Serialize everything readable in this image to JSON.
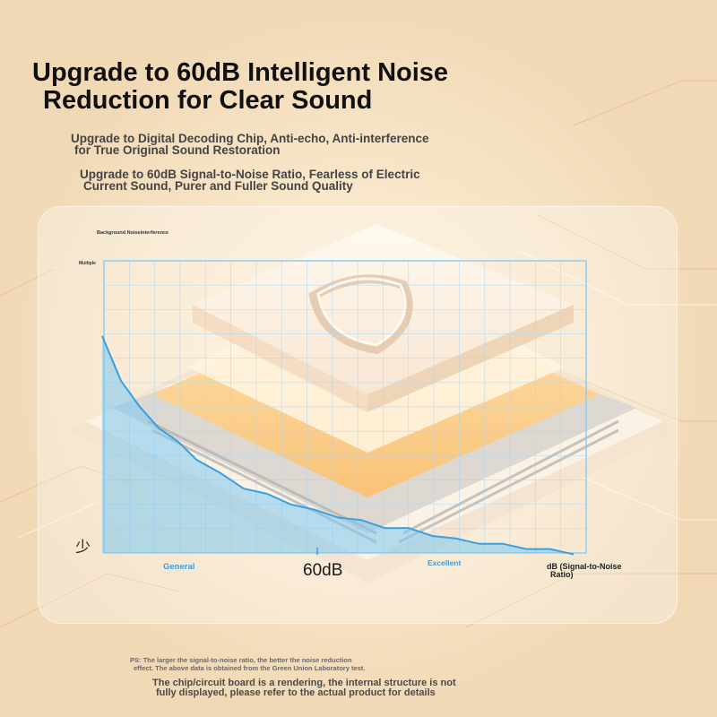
{
  "headline": {
    "line1": "Upgrade to 60dB Intelligent Noise",
    "line2": "Reduction for Clear Sound"
  },
  "features": [
    {
      "line1": "Upgrade to Digital Decoding Chip, Anti-echo, Anti-interference",
      "line2": "for True Original Sound Restoration"
    },
    {
      "line1": "Upgrade to 60dB Signal-to-Noise Ratio, Fearless of Electric",
      "line2": "Current Sound, Purer and Fuller Sound Quality"
    }
  ],
  "chart": {
    "y_title": "Background Noiseinterference",
    "y_top_label": "Multiple",
    "y_bottom_label": "少",
    "x_left_label": "General",
    "x_mid_label": "60dB",
    "x_right_label": "Excellent",
    "x_unit_line1": "dB (Signal-to-Noise",
    "x_unit_line2": "Ratio)"
  },
  "chart_data": {
    "type": "area",
    "title": "",
    "ylabel": "Background Noiseinterference",
    "xlabel": "dB (Signal-to-Noise Ratio)",
    "x_ticks": [
      "General",
      "60dB",
      "Excellent"
    ],
    "y_ticks": [
      "Multiple",
      "少"
    ],
    "x": [
      0,
      0.04,
      0.08,
      0.12,
      0.16,
      0.2,
      0.25,
      0.3,
      0.35,
      0.4,
      0.45,
      0.5,
      0.55,
      0.6,
      0.65,
      0.7,
      0.75,
      0.8,
      0.85,
      0.9,
      0.95,
      1.0
    ],
    "values": [
      0.82,
      0.66,
      0.55,
      0.48,
      0.42,
      0.36,
      0.3,
      0.25,
      0.22,
      0.19,
      0.16,
      0.14,
      0.12,
      0.1,
      0.09,
      0.07,
      0.05,
      0.04,
      0.03,
      0.02,
      0.01,
      0.0
    ],
    "grid": true,
    "color": "#5cb8ef"
  },
  "colors": {
    "accent": "#3a9fe0",
    "fill": "#7cc8f2",
    "grid": "#a9d7f3",
    "chip_glow": "#ffb648"
  },
  "footnotes": {
    "ps_line1": "PS: The larger the signal-to-noise ratio, the better the noise reduction",
    "ps_line2": "effect. The above data is obtained from the Green Union Laboratory test.",
    "render_line1": "The chip/circuit board is a rendering, the internal structure is not",
    "render_line2": "fully displayed, please refer to the actual product for details"
  }
}
